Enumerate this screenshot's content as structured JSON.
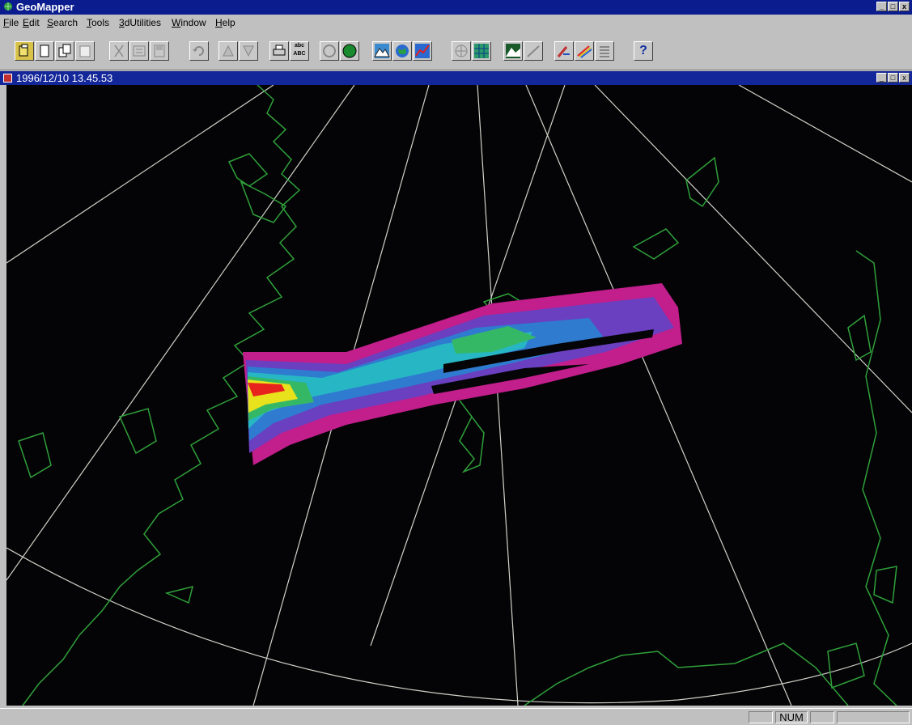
{
  "app": {
    "title": "GeoMapper",
    "icon": "globe-app-icon"
  },
  "window_controls": {
    "minimize": "_",
    "maximize": "□",
    "close": "x"
  },
  "menu": [
    {
      "label": "File",
      "accel": "F",
      "rest": "ile"
    },
    {
      "label": "Edit",
      "accel": "E",
      "rest": "dit"
    },
    {
      "label": "Search",
      "accel": "S",
      "rest": "earch"
    },
    {
      "label": "Tools",
      "accel": "T",
      "rest": "ools"
    },
    {
      "label": "3dUtilities",
      "accel": "3",
      "rest": "dUtilities"
    },
    {
      "label": "Window",
      "accel": "W",
      "rest": "indow"
    },
    {
      "label": "Help",
      "accel": "H",
      "rest": "elp"
    }
  ],
  "toolbar": {
    "buttons": [
      "open-folder-icon",
      "new-document-icon",
      "copy-document-icon",
      "paste-document-icon",
      "cut-icon",
      "properties-icon",
      "save-icon",
      "undo-icon",
      "tool-a-icon",
      "tool-b-icon",
      "print-icon",
      "spellcheck-icon",
      "layer-icon",
      "globe-green-icon",
      "mountain-icon",
      "globe-blue-icon",
      "chart-icon",
      "grid-icon",
      "projection-icon",
      "terrain-icon",
      "line-icon",
      "paint-icon",
      "rainbow-pen-icon",
      "list-icon",
      "help-icon"
    ],
    "spellcheck_text": "abc ABC",
    "help_text": "?"
  },
  "document": {
    "title": "1996/12/10 13.45.53"
  },
  "map": {
    "background": "#040406",
    "coastline_color": "#2fa03a",
    "graticule_color": "#cfd3c8",
    "radar_scale_colors": [
      "#c21e8c",
      "#6a3fc0",
      "#2f7bd0",
      "#27b6c4",
      "#35b866",
      "#e7e21c",
      "#e8221c"
    ]
  },
  "status": {
    "num": "NUM"
  }
}
